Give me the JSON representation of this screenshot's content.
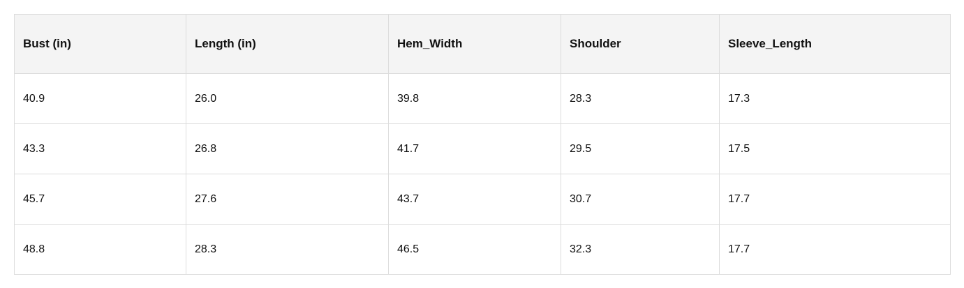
{
  "table": {
    "header": [
      "Bust (in)",
      "Length (in)",
      "Hem_Width",
      "Shoulder",
      "Sleeve_Length"
    ],
    "rows": [
      [
        "40.9",
        "26.0",
        "39.8",
        "28.3",
        "17.3"
      ],
      [
        "43.3",
        "26.8",
        "41.7",
        "29.5",
        "17.5"
      ],
      [
        "45.7",
        "27.6",
        "43.7",
        "30.7",
        "17.7"
      ],
      [
        "48.8",
        "28.3",
        "46.5",
        "32.3",
        "17.7"
      ]
    ]
  }
}
